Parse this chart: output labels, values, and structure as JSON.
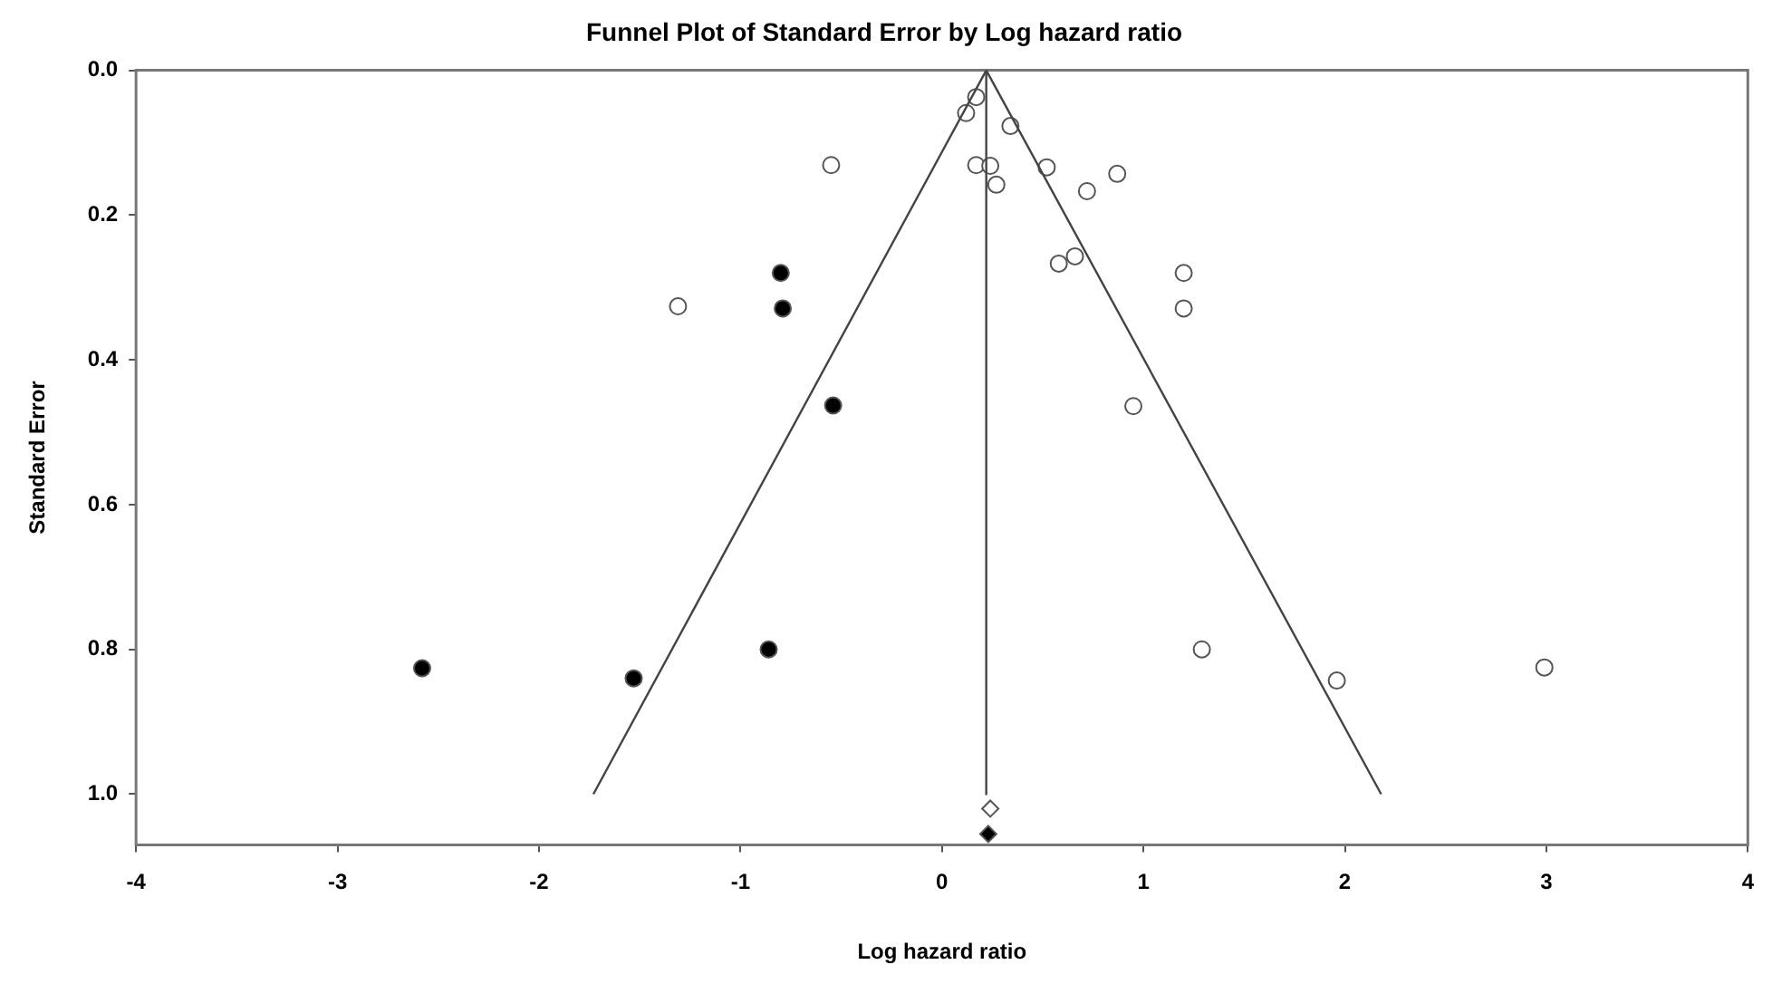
{
  "chart_data": {
    "type": "scatter",
    "title": "Funnel Plot of Standard Error by Log hazard ratio",
    "xlabel": "Log hazard ratio",
    "ylabel": "Standard Error",
    "xlim": [
      -4,
      4
    ],
    "xticks": [
      -4,
      -3,
      -2,
      -1,
      0,
      1,
      2,
      3,
      4
    ],
    "ylim": [
      1.07,
      0
    ],
    "yticks": [
      {
        "value": 0,
        "label": "0.0"
      },
      0.2,
      0.4,
      0.6,
      0.8,
      {
        "value": 1,
        "label": "1.0"
      }
    ],
    "grid": false,
    "legend": false,
    "series": [
      {
        "type": "line",
        "color": "#444444",
        "marker": "none",
        "x": [
          -1.73,
          0.22,
          2.18
        ],
        "values": [
          1,
          0,
          1
        ]
      },
      {
        "type": "line",
        "color": "#444444",
        "marker": "none",
        "x": [
          0.22,
          0.22
        ],
        "values": [
          0,
          1
        ]
      },
      {
        "type": "scatter",
        "color": "#ffffff",
        "marker": "circle",
        "x": [
          0.17,
          0.12,
          0.34,
          -0.55,
          0.17,
          0.24,
          0.27,
          0.52,
          0.87,
          0.72,
          0.58,
          0.66,
          1.2,
          1.2,
          0.95,
          -1.31,
          1.29,
          1.96,
          2.99
        ],
        "values": [
          0.037,
          0.059,
          0.077,
          0.131,
          0.131,
          0.132,
          0.158,
          0.134,
          0.143,
          0.167,
          0.267,
          0.257,
          0.28,
          0.329,
          0.464,
          0.326,
          0.8,
          0.843,
          0.825
        ]
      },
      {
        "type": "scatter",
        "color": "#000000",
        "marker": "circle",
        "x": [
          -0.8,
          -0.79,
          -0.54,
          -0.86,
          -1.53,
          -2.58
        ],
        "values": [
          0.28,
          0.329,
          0.463,
          0.8,
          0.84,
          0.826
        ]
      },
      {
        "type": "scatter",
        "color": "#ffffff",
        "marker": "diamond",
        "x": [
          0.24
        ],
        "values": [
          1.02
        ]
      },
      {
        "type": "scatter",
        "color": "#000000",
        "marker": "diamond",
        "x": [
          0.23
        ],
        "values": [
          1.055
        ]
      }
    ]
  }
}
